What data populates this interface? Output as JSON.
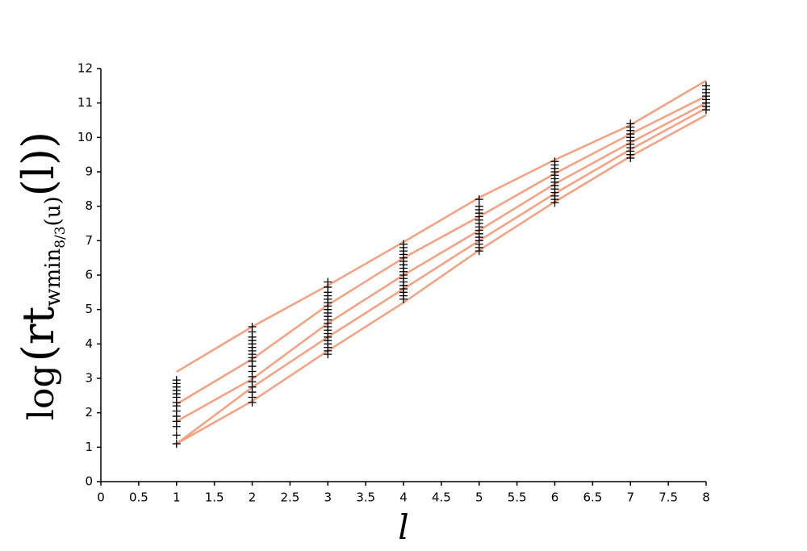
{
  "chart_data": {
    "type": "line",
    "xlabel": "l",
    "ylabel": {
      "main": "log",
      "open": "(rt",
      "sub": "wmin",
      "subsub": "8/3",
      "sub_end": "(u)",
      "close": "(l))"
    },
    "x": [
      1,
      2,
      3,
      4,
      5,
      6,
      7,
      8
    ],
    "series": [
      {
        "color": "#f5a080",
        "values": [
          3.19,
          4.5,
          5.7,
          6.96,
          8.25,
          9.35,
          10.36,
          11.65
        ]
      },
      {
        "color": "#f5a080",
        "values": [
          2.25,
          3.56,
          5.13,
          6.5,
          7.7,
          8.95,
          10.1,
          11.2
        ]
      },
      {
        "color": "#f5a080",
        "values": [
          1.75,
          2.98,
          4.6,
          6.0,
          7.3,
          8.65,
          9.85,
          11.0
        ]
      },
      {
        "color": "#f5a080",
        "values": [
          1.1,
          2.74,
          4.2,
          5.6,
          7.0,
          8.37,
          9.65,
          10.85
        ]
      },
      {
        "color": "#f5a080",
        "values": [
          1.1,
          2.34,
          3.8,
          5.2,
          6.72,
          8.13,
          9.45,
          10.65
        ]
      }
    ],
    "scatter": {
      "color": "#000000",
      "x": [
        1,
        1,
        1,
        1,
        1,
        1,
        1,
        1,
        1,
        1,
        1,
        1,
        1,
        1,
        2,
        2,
        2,
        2,
        2,
        2,
        2,
        2,
        2,
        2,
        2,
        2,
        2,
        2,
        2,
        2,
        2,
        2,
        3,
        3,
        3,
        3,
        3,
        3,
        3,
        3,
        3,
        3,
        3,
        3,
        3,
        3,
        3,
        3,
        3,
        3,
        3,
        3,
        3,
        4,
        4,
        4,
        4,
        4,
        4,
        4,
        4,
        4,
        4,
        4,
        4,
        4,
        4,
        4,
        4,
        4,
        5,
        5,
        5,
        5,
        5,
        5,
        5,
        5,
        5,
        5,
        5,
        5,
        5,
        5,
        5,
        6,
        6,
        6,
        6,
        6,
        6,
        6,
        6,
        6,
        6,
        6,
        6,
        6,
        7,
        7,
        7,
        7,
        7,
        7,
        7,
        7,
        7,
        7,
        7,
        8,
        8,
        8,
        8,
        8,
        8,
        8,
        8
      ],
      "values": [
        1.1,
        1.35,
        1.6,
        1.75,
        1.9,
        2.05,
        2.2,
        2.3,
        2.45,
        2.55,
        2.65,
        2.75,
        2.85,
        2.95,
        2.3,
        2.45,
        2.6,
        2.75,
        2.9,
        3.05,
        3.2,
        3.35,
        3.5,
        3.6,
        3.7,
        3.8,
        3.9,
        4.0,
        4.1,
        4.2,
        4.35,
        4.5,
        3.7,
        3.8,
        3.9,
        4.0,
        4.1,
        4.2,
        4.3,
        4.4,
        4.5,
        4.6,
        4.7,
        4.8,
        4.9,
        5.0,
        5.1,
        5.2,
        5.3,
        5.4,
        5.5,
        5.65,
        5.8,
        5.3,
        5.4,
        5.5,
        5.6,
        5.7,
        5.8,
        5.9,
        6.0,
        6.1,
        6.2,
        6.3,
        6.4,
        6.5,
        6.6,
        6.7,
        6.8,
        6.9,
        6.7,
        6.8,
        6.9,
        7.0,
        7.1,
        7.2,
        7.3,
        7.4,
        7.5,
        7.6,
        7.7,
        7.8,
        7.9,
        8.0,
        8.2,
        8.1,
        8.2,
        8.3,
        8.4,
        8.5,
        8.6,
        8.7,
        8.8,
        8.9,
        9.0,
        9.1,
        9.2,
        9.3,
        9.4,
        9.5,
        9.6,
        9.7,
        9.8,
        9.9,
        10.0,
        10.1,
        10.2,
        10.3,
        10.4,
        10.8,
        10.9,
        11.0,
        11.1,
        11.2,
        11.3,
        11.4,
        11.5
      ]
    },
    "xlim": [
      0,
      8
    ],
    "ylim": [
      0,
      12
    ],
    "xticks": [
      0,
      0.5,
      1,
      1.5,
      2,
      2.5,
      3,
      3.5,
      4,
      4.5,
      5,
      5.5,
      6,
      6.5,
      7,
      7.5,
      8
    ],
    "yticks": [
      0,
      1,
      2,
      3,
      4,
      5,
      6,
      7,
      8,
      9,
      10,
      11,
      12
    ]
  }
}
